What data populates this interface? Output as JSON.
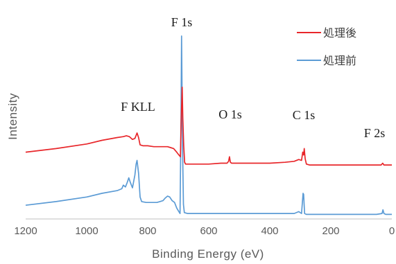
{
  "chart_data": {
    "type": "line",
    "title": "",
    "xlabel": "Binding Energy (eV)",
    "ylabel": "Intensity",
    "xlim": [
      1200,
      0
    ],
    "x_reversed": true,
    "ylim": [
      0,
      100
    ],
    "x_ticks": [
      1200,
      1000,
      800,
      600,
      400,
      200,
      0
    ],
    "x_tick_labels": [
      "1200",
      "1000",
      "800",
      "600",
      "400",
      "200",
      "0"
    ],
    "y_tick_labels_shown": false,
    "grid": false,
    "legend": {
      "placement": "top-right"
    },
    "annotations": [
      {
        "text": "F 1s",
        "x": 685
      },
      {
        "text": "F KLL",
        "x": 830
      },
      {
        "text": "O 1s",
        "x": 532
      },
      {
        "text": "C 1s",
        "x": 287
      },
      {
        "text": "F 2s",
        "x": 30
      }
    ],
    "series": [
      {
        "name": "処理後",
        "color": "#e8262a",
        "points": [
          [
            1200,
            36.5
          ],
          [
            1100,
            38.5
          ],
          [
            1000,
            41
          ],
          [
            950,
            43
          ],
          [
            900,
            44.5
          ],
          [
            880,
            45
          ],
          [
            870,
            45.5
          ],
          [
            860,
            45
          ],
          [
            850,
            43.5
          ],
          [
            842,
            44
          ],
          [
            835,
            47
          ],
          [
            830,
            44.5
          ],
          [
            825,
            40.5
          ],
          [
            815,
            40
          ],
          [
            800,
            40
          ],
          [
            780,
            39.5
          ],
          [
            760,
            39.5
          ],
          [
            745,
            39.5
          ],
          [
            735,
            39.5
          ],
          [
            725,
            39
          ],
          [
            715,
            38.5
          ],
          [
            705,
            36.5
          ],
          [
            698,
            35
          ],
          [
            693,
            34
          ],
          [
            690,
            56
          ],
          [
            687,
            72
          ],
          [
            685,
            55
          ],
          [
            682,
            40
          ],
          [
            679,
            31
          ],
          [
            676,
            30
          ],
          [
            670,
            30
          ],
          [
            650,
            30
          ],
          [
            600,
            30
          ],
          [
            560,
            30.5
          ],
          [
            540,
            30.5
          ],
          [
            535,
            31.5
          ],
          [
            532,
            34
          ],
          [
            529,
            31
          ],
          [
            525,
            30.5
          ],
          [
            500,
            30.5
          ],
          [
            450,
            30.5
          ],
          [
            400,
            30.5
          ],
          [
            350,
            31
          ],
          [
            320,
            31.5
          ],
          [
            305,
            32.5
          ],
          [
            296,
            32
          ],
          [
            292,
            36.5
          ],
          [
            289,
            35
          ],
          [
            287,
            38.5
          ],
          [
            284,
            33
          ],
          [
            280,
            30
          ],
          [
            270,
            29.5
          ],
          [
            250,
            29.5
          ],
          [
            200,
            29.5
          ],
          [
            150,
            29.5
          ],
          [
            100,
            29.5
          ],
          [
            50,
            29.5
          ],
          [
            35,
            29.5
          ],
          [
            30,
            30.5
          ],
          [
            26,
            29.5
          ],
          [
            15,
            29.5
          ],
          [
            0,
            29.5
          ]
        ]
      },
      {
        "name": "処理前",
        "color": "#5b9bd5",
        "points": [
          [
            1200,
            7.5
          ],
          [
            1100,
            9.5
          ],
          [
            1000,
            12
          ],
          [
            950,
            14
          ],
          [
            900,
            15.5
          ],
          [
            885,
            16.5
          ],
          [
            880,
            18.5
          ],
          [
            873,
            17.5
          ],
          [
            867,
            20
          ],
          [
            862,
            22.5
          ],
          [
            857,
            20
          ],
          [
            850,
            17
          ],
          [
            842,
            24
          ],
          [
            838,
            30
          ],
          [
            835,
            32
          ],
          [
            830,
            25
          ],
          [
            825,
            12
          ],
          [
            820,
            9.5
          ],
          [
            805,
            9
          ],
          [
            790,
            9
          ],
          [
            770,
            9
          ],
          [
            760,
            9.5
          ],
          [
            750,
            10
          ],
          [
            742,
            11.5
          ],
          [
            735,
            12.5
          ],
          [
            728,
            12
          ],
          [
            720,
            10
          ],
          [
            712,
            9
          ],
          [
            705,
            6
          ],
          [
            698,
            4
          ],
          [
            694,
            3
          ],
          [
            691,
            55
          ],
          [
            689,
            100
          ],
          [
            686,
            40
          ],
          [
            683,
            8
          ],
          [
            680,
            3.5
          ],
          [
            670,
            3
          ],
          [
            640,
            3
          ],
          [
            600,
            3
          ],
          [
            560,
            3
          ],
          [
            520,
            3
          ],
          [
            480,
            3
          ],
          [
            440,
            3
          ],
          [
            400,
            3
          ],
          [
            350,
            3
          ],
          [
            320,
            3
          ],
          [
            305,
            4
          ],
          [
            296,
            3
          ],
          [
            291,
            14
          ],
          [
            289,
            13.5
          ],
          [
            286,
            3
          ],
          [
            280,
            2.5
          ],
          [
            250,
            2.5
          ],
          [
            200,
            2.5
          ],
          [
            150,
            2.5
          ],
          [
            100,
            2.5
          ],
          [
            50,
            2.5
          ],
          [
            32,
            3
          ],
          [
            29,
            5
          ],
          [
            26,
            3
          ],
          [
            20,
            2.5
          ],
          [
            0,
            2.5
          ]
        ]
      }
    ]
  }
}
